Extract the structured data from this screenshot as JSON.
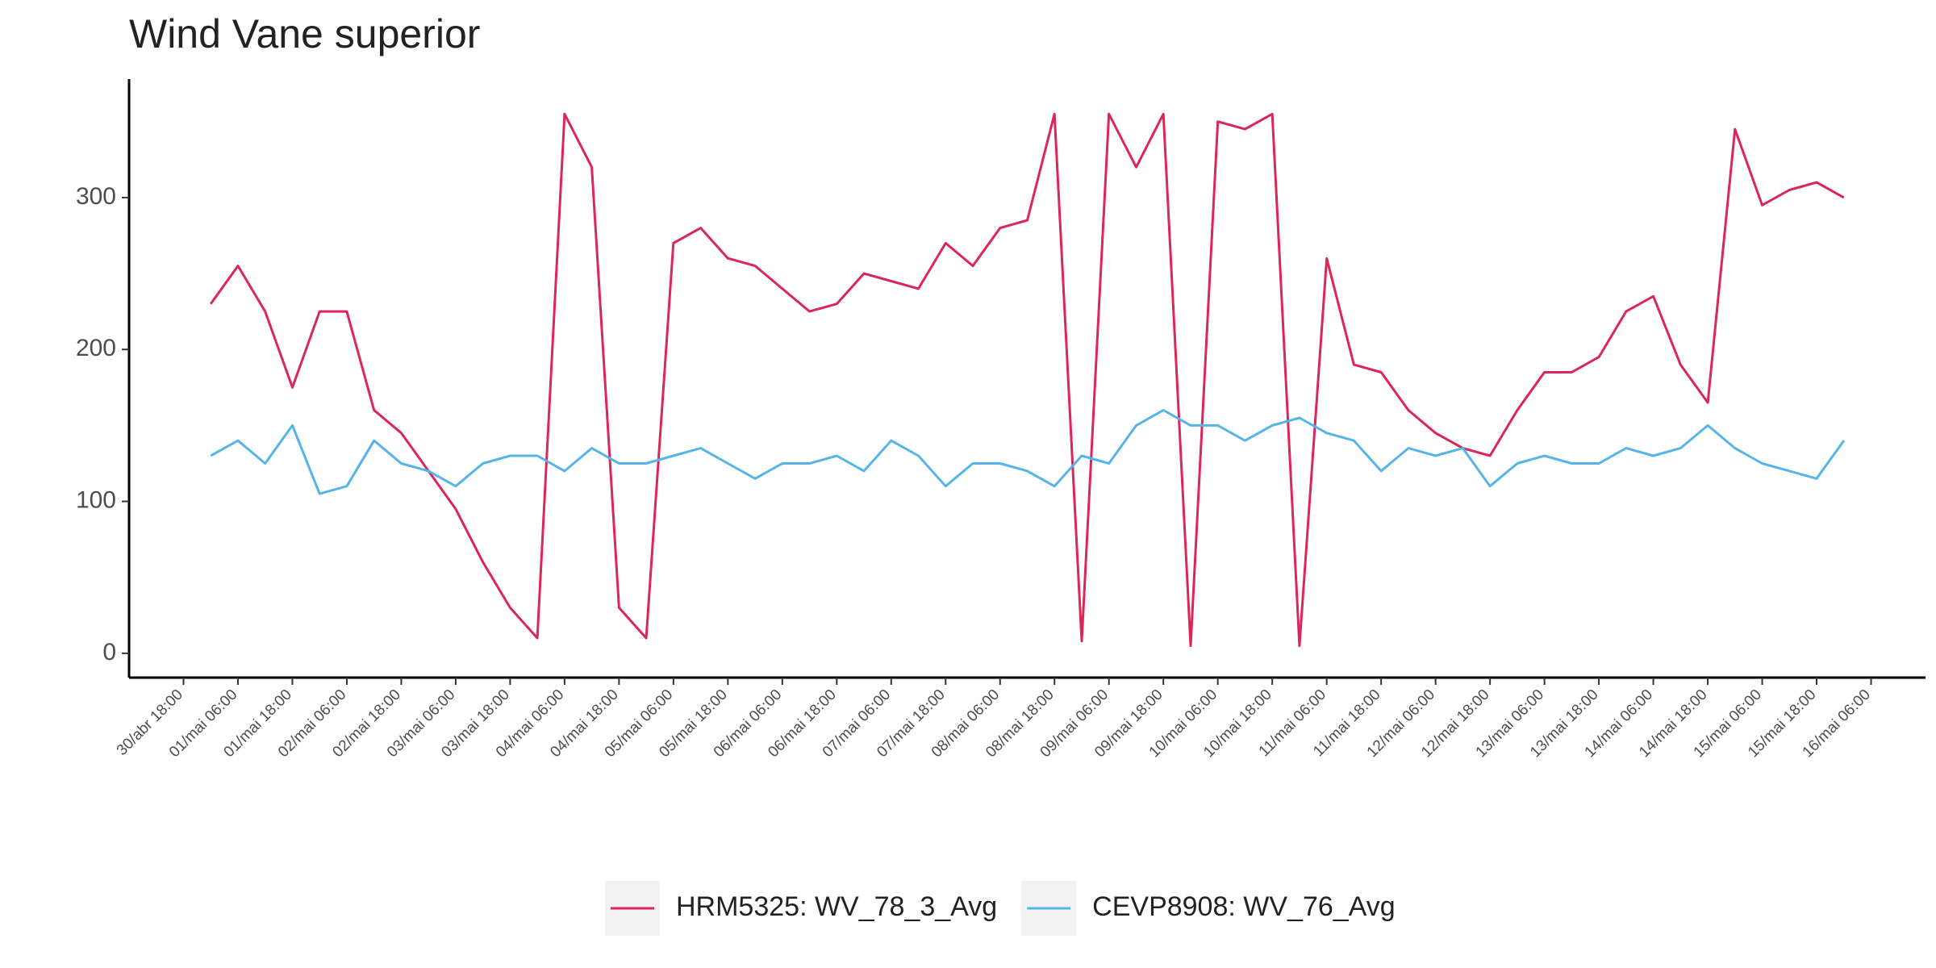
{
  "chart_data": {
    "type": "line",
    "title": "Wind Vane superior",
    "x": [
      "01/mai 00:00",
      "01/mai 06:00",
      "01/mai 12:00",
      "01/mai 18:00",
      "02/mai 00:00",
      "02/mai 06:00",
      "02/mai 12:00",
      "02/mai 18:00",
      "03/mai 00:00",
      "03/mai 06:00",
      "03/mai 12:00",
      "03/mai 18:00",
      "04/mai 00:00",
      "04/mai 06:00",
      "04/mai 12:00",
      "04/mai 18:00",
      "05/mai 00:00",
      "05/mai 06:00",
      "05/mai 12:00",
      "05/mai 18:00",
      "06/mai 00:00",
      "06/mai 06:00",
      "06/mai 12:00",
      "06/mai 18:00",
      "07/mai 00:00",
      "07/mai 06:00",
      "07/mai 12:00",
      "07/mai 18:00",
      "08/mai 00:00",
      "08/mai 06:00",
      "08/mai 12:00",
      "08/mai 18:00",
      "09/mai 00:00",
      "09/mai 06:00",
      "09/mai 12:00",
      "09/mai 18:00",
      "10/mai 00:00",
      "10/mai 06:00",
      "10/mai 12:00",
      "10/mai 18:00",
      "11/mai 00:00",
      "11/mai 06:00",
      "11/mai 12:00",
      "11/mai 18:00",
      "12/mai 00:00",
      "12/mai 06:00",
      "12/mai 12:00",
      "12/mai 18:00",
      "13/mai 00:00",
      "13/mai 06:00",
      "13/mai 12:00",
      "13/mai 18:00",
      "14/mai 00:00",
      "14/mai 06:00",
      "14/mai 12:00",
      "14/mai 18:00",
      "15/mai 00:00",
      "15/mai 06:00",
      "15/mai 12:00",
      "15/mai 18:00",
      "16/mai 00:00"
    ],
    "series": [
      {
        "name": "HRM5325: WV_78_3_Avg",
        "color": "#dc2559",
        "values": [
          230,
          255,
          225,
          175,
          225,
          225,
          160,
          145,
          120,
          95,
          60,
          30,
          10,
          355,
          320,
          30,
          10,
          270,
          280,
          260,
          255,
          240,
          225,
          230,
          250,
          245,
          240,
          270,
          255,
          280,
          285,
          355,
          8,
          355,
          320,
          355,
          5,
          350,
          345,
          355,
          5,
          260,
          190,
          185,
          160,
          145,
          135,
          130,
          160,
          185,
          185,
          195,
          225,
          235,
          190,
          165,
          345,
          295,
          305,
          310,
          300
        ]
      },
      {
        "name": "CEVP8908: WV_76_Avg",
        "color": "#56b4e9",
        "values": [
          130,
          140,
          125,
          150,
          105,
          110,
          140,
          125,
          120,
          110,
          125,
          130,
          130,
          120,
          135,
          125,
          125,
          130,
          135,
          125,
          115,
          125,
          125,
          130,
          120,
          140,
          130,
          110,
          125,
          125,
          120,
          110,
          130,
          125,
          150,
          160,
          150,
          150,
          140,
          150,
          155,
          145,
          140,
          120,
          135,
          130,
          135,
          110,
          125,
          130,
          125,
          125,
          135,
          130,
          135,
          150,
          135,
          125,
          120,
          115,
          140
        ]
      }
    ],
    "xlim": [
      "30/abr 06:00",
      "16/mai 18:00"
    ],
    "xticks": [
      "30/abr 18:00",
      "01/mai 06:00",
      "01/mai 18:00",
      "02/mai 06:00",
      "02/mai 18:00",
      "03/mai 06:00",
      "03/mai 18:00",
      "04/mai 06:00",
      "04/mai 18:00",
      "05/mai 06:00",
      "05/mai 18:00",
      "06/mai 06:00",
      "06/mai 18:00",
      "07/mai 06:00",
      "07/mai 18:00",
      "08/mai 06:00",
      "08/mai 18:00",
      "09/mai 06:00",
      "09/mai 18:00",
      "10/mai 06:00",
      "10/mai 18:00",
      "11/mai 06:00",
      "11/mai 18:00",
      "12/mai 06:00",
      "12/mai 18:00",
      "13/mai 06:00",
      "13/mai 18:00",
      "14/mai 06:00",
      "14/mai 18:00",
      "15/mai 06:00",
      "15/mai 18:00",
      "16/mai 06:00"
    ],
    "ylim": [
      -16,
      378
    ],
    "yticks": [
      0,
      100,
      200,
      300
    ],
    "grid": false,
    "legend": "bottom"
  }
}
